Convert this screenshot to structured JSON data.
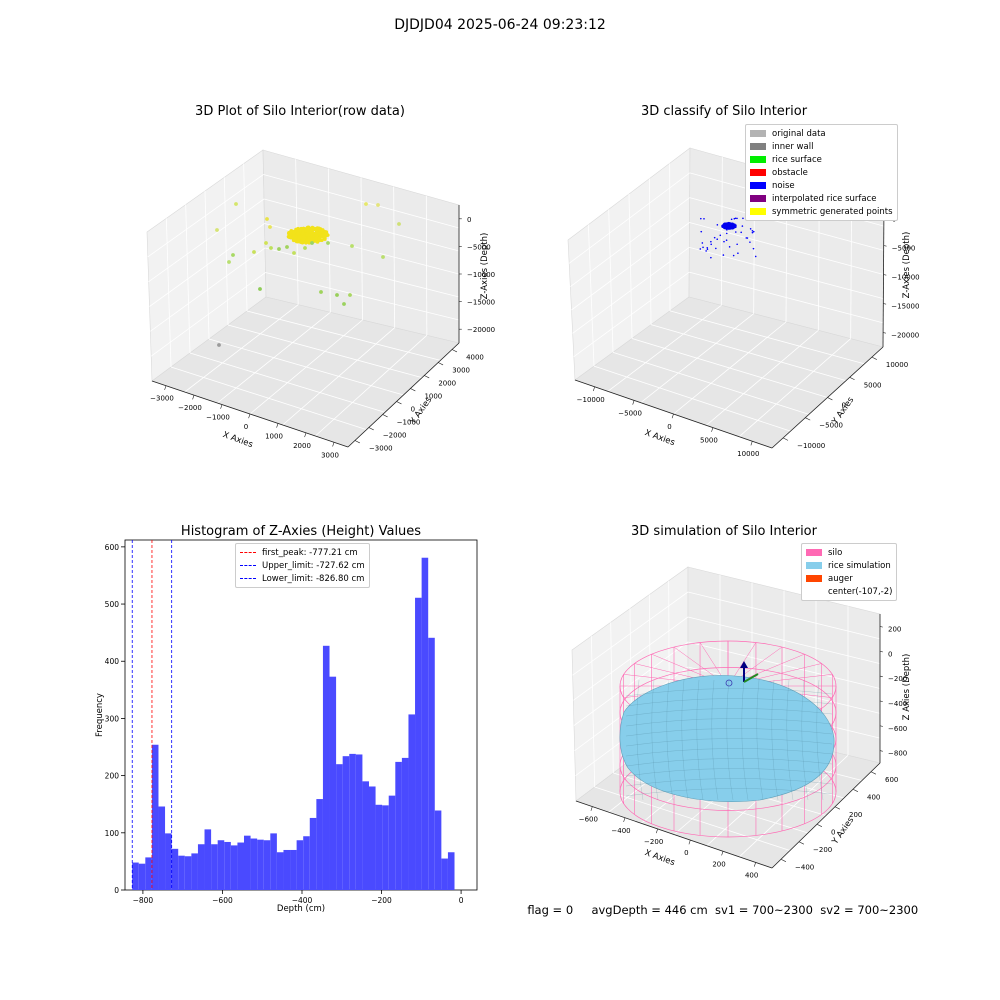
{
  "figure": {
    "suptitle": "DJDJD04 2025-06-24 09:23:12",
    "footer": {
      "flag": "flag = 0",
      "avg_depth": "avgDepth = 446 cm",
      "sv1": "sv1 = 700~2300",
      "sv2": "sv2 = 700~2300"
    }
  },
  "panel_raw": {
    "title": "3D Plot of Silo Interior(row data)",
    "xlabel": "X Axies",
    "ylabel": "Y Axies",
    "zlabel": "Z-Axies (Depth)",
    "xticks": [
      "−3000",
      "−2000",
      "−1000",
      "0",
      "1000",
      "2000",
      "3000"
    ],
    "yticks": [
      "−3000",
      "−2000",
      "−1000",
      "0",
      "1000",
      "2000",
      "3000",
      "4000"
    ],
    "zticks": [
      "0",
      "−5000",
      "−10000",
      "−15000",
      "−20000"
    ]
  },
  "panel_classify": {
    "title": "3D classify of Silo Interior",
    "xlabel": "X Axies",
    "ylabel": "Y Axies",
    "zlabel": "Z-Axies (Depth)",
    "xticks": [
      "−10000",
      "−5000",
      "0",
      "5000",
      "10000"
    ],
    "yticks": [
      "−10000",
      "−5000",
      "0",
      "5000",
      "10000"
    ],
    "zticks": [
      "0",
      "−5000",
      "−10000",
      "−15000",
      "−20000"
    ],
    "legend": [
      {
        "label": "original data",
        "color": "#b3b3b3"
      },
      {
        "label": "inner wall",
        "color": "#808080"
      },
      {
        "label": "rice surface",
        "color": "#00ee00"
      },
      {
        "label": "obstacle",
        "color": "#ff0000"
      },
      {
        "label": "noise",
        "color": "#0000ff"
      },
      {
        "label": "interpolated rice surface",
        "color": "#800080"
      },
      {
        "label": "symmetric generated points",
        "color": "#ffff00"
      }
    ]
  },
  "panel_sim": {
    "title": "3D simulation of Silo Interior",
    "xlabel": "X Axies",
    "ylabel": "Y Axies",
    "zlabel": "Z Axies (Depth)",
    "xticks": [
      "−600",
      "−400",
      "−200",
      "0",
      "200",
      "400"
    ],
    "yticks": [
      "−400",
      "−200",
      "0",
      "200",
      "400",
      "600"
    ],
    "zticks": [
      "200",
      "0",
      "−200",
      "−400",
      "−600",
      "−800"
    ],
    "legend": [
      {
        "label": "silo",
        "color": "#ff69b4"
      },
      {
        "label": "rice simulation",
        "color": "#87ceeb"
      },
      {
        "label": "auger",
        "color": "#ff4500"
      },
      {
        "label": "center(-107,-2)",
        "color": "transparent"
      }
    ]
  },
  "chart_data": [
    {
      "type": "bar",
      "title": "Histogram of Z-Axies (Height) Values",
      "xlabel": "Depth (cm)",
      "ylabel": "Frequency",
      "xlim": [
        -845,
        40
      ],
      "ylim": [
        0,
        612
      ],
      "xticks": [
        -800,
        -600,
        -400,
        -200,
        0
      ],
      "xtick_labels": [
        "−800",
        "−600",
        "−400",
        "−200",
        "0"
      ],
      "yticks": [
        0,
        100,
        200,
        300,
        400,
        500,
        600
      ],
      "bar_color": "#4a4aff",
      "bin_start": -827,
      "bin_width": 16.54,
      "values": [
        48,
        46,
        57,
        254,
        146,
        99,
        72,
        60,
        59,
        64,
        80,
        106,
        80,
        87,
        84,
        78,
        83,
        95,
        90,
        88,
        87,
        99,
        66,
        70,
        70,
        87,
        94,
        126,
        159,
        427,
        373,
        220,
        234,
        238,
        237,
        190,
        181,
        149,
        148,
        165,
        224,
        231,
        307,
        511,
        581,
        441,
        139,
        55,
        66
      ],
      "legend_position": "upper center",
      "vlines": [
        {
          "label": "first_peak: -777.21 cm",
          "x": -777.21,
          "color": "#ff0000"
        },
        {
          "label": "Upper_limit: -727.62 cm",
          "x": -727.62,
          "color": "#0000ff"
        },
        {
          "label": "Lower_limit: -826.80 cm",
          "x": -826.8,
          "color": "#0000ff"
        }
      ]
    }
  ]
}
